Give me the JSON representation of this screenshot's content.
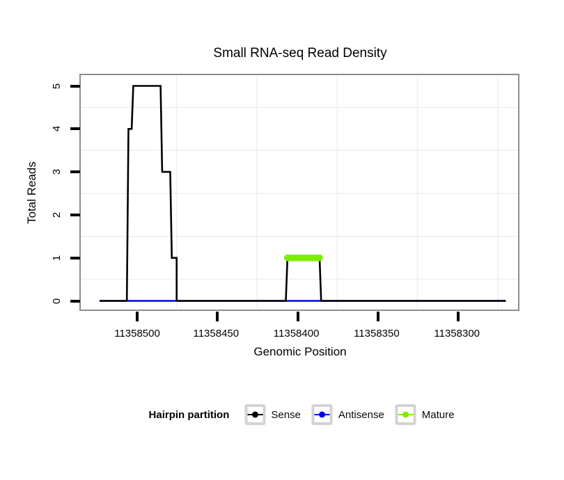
{
  "figure": {
    "title": "Small RNA-seq Read Density",
    "x_axis": {
      "label": "Genomic Position",
      "ticks": [
        "11358500",
        "11358450",
        "11358400",
        "11358350",
        "11358300"
      ]
    },
    "y_axis": {
      "label": "Total Reads",
      "ticks": [
        "0",
        "1",
        "2",
        "3",
        "4",
        "5"
      ]
    },
    "legend": {
      "title": "Hairpin partition",
      "items": [
        {
          "label": "Sense",
          "color": "#000000"
        },
        {
          "label": "Antisense",
          "color": "#0000EE"
        },
        {
          "label": "Mature",
          "color": "#7CEE00"
        }
      ]
    }
  },
  "chart_data": {
    "type": "line",
    "title": "Small RNA-seq Read Density",
    "xlabel": "Genomic Position",
    "ylabel": "Total Reads",
    "x_ticks": [
      11358500,
      11358450,
      11358400,
      11358350,
      11358300
    ],
    "x_axis_reversed": true,
    "xlim": [
      11358535,
      11358262
    ],
    "ylim": [
      0,
      5
    ],
    "y_ticks": [
      0,
      1,
      2,
      3,
      4,
      5
    ],
    "grid": true,
    "panel_border_color": "#8c8c8c",
    "grid_color": "#f0f0f0",
    "legend_position": "bottom",
    "legend_title": "Hairpin partition",
    "series": [
      {
        "name": "Antisense",
        "color": "#0000EE",
        "style": "line",
        "points": [
          [
            11358523,
            0
          ],
          [
            11358270,
            0
          ]
        ]
      },
      {
        "name": "Sense",
        "color": "#000000",
        "style": "step-line",
        "points": [
          [
            11358523,
            0
          ],
          [
            11358506,
            0
          ],
          [
            11358505,
            4
          ],
          [
            11358503,
            4
          ],
          [
            11358502,
            5
          ],
          [
            11358485,
            5
          ],
          [
            11358484,
            3
          ],
          [
            11358479,
            3
          ],
          [
            11358478,
            1
          ],
          [
            11358475,
            1
          ],
          [
            11358475,
            0
          ],
          [
            11358407,
            0
          ],
          [
            11358406,
            1
          ],
          [
            11358386,
            1
          ],
          [
            11358385,
            0
          ],
          [
            11358270,
            0
          ]
        ]
      },
      {
        "name": "Mature",
        "color": "#7CEE00",
        "style": "points",
        "points": [
          [
            11358406,
            1
          ],
          [
            11358405,
            1
          ],
          [
            11358404,
            1
          ],
          [
            11358403,
            1
          ],
          [
            11358402,
            1
          ],
          [
            11358401,
            1
          ],
          [
            11358400,
            1
          ],
          [
            11358399,
            1
          ],
          [
            11358398,
            1
          ],
          [
            11358397,
            1
          ],
          [
            11358396,
            1
          ],
          [
            11358395,
            1
          ],
          [
            11358394,
            1
          ],
          [
            11358393,
            1
          ],
          [
            11358392,
            1
          ],
          [
            11358391,
            1
          ],
          [
            11358390,
            1
          ],
          [
            11358389,
            1
          ],
          [
            11358388,
            1
          ],
          [
            11358387,
            1
          ],
          [
            11358386,
            1
          ]
        ]
      }
    ]
  }
}
